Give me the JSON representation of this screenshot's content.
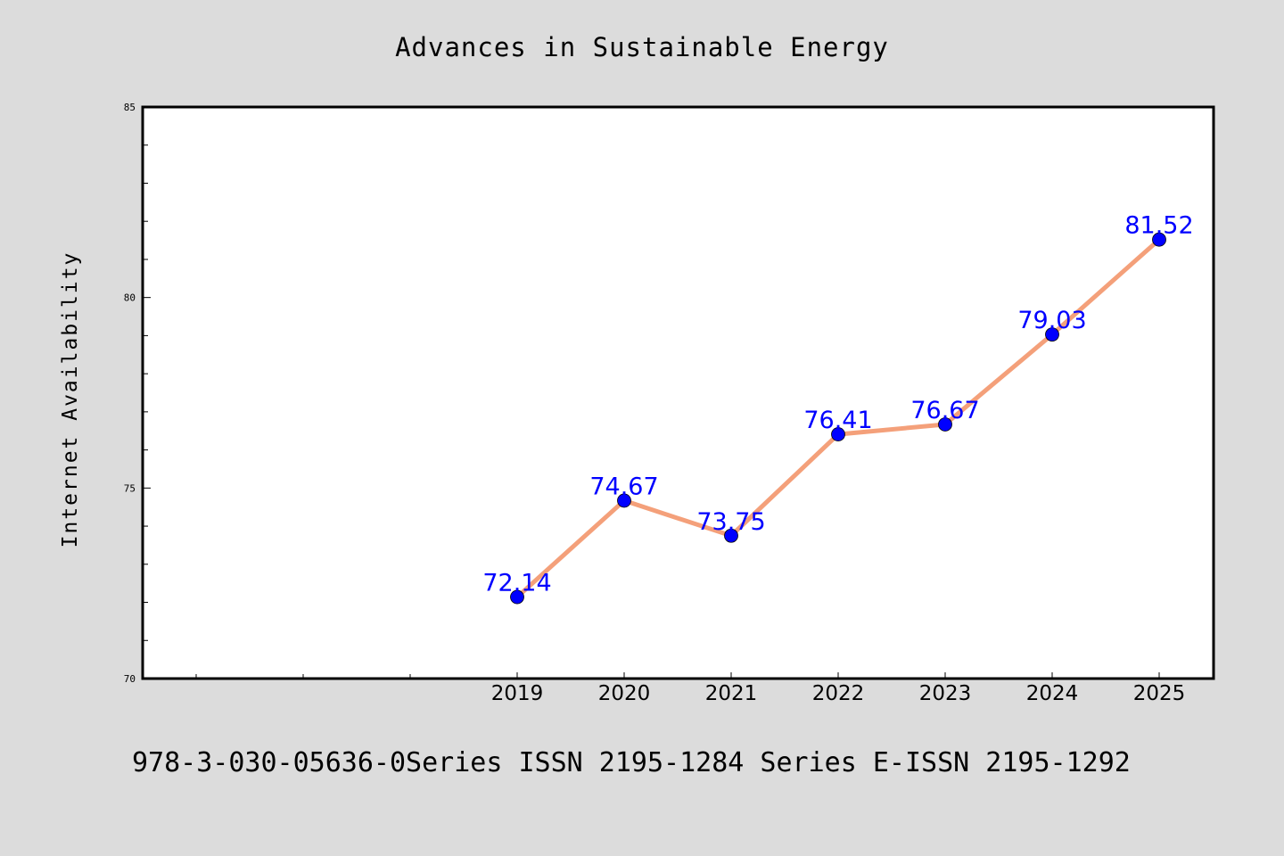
{
  "chart_data": {
    "type": "line",
    "title": "Advances in Sustainable Energy",
    "xlabel": "",
    "ylabel": "Internet Availability",
    "x": [
      "2019",
      "2020",
      "2021",
      "2022",
      "2023",
      "2024",
      "2025"
    ],
    "series": [
      {
        "values": [
          72.14,
          74.67,
          73.75,
          76.41,
          76.67,
          79.03,
          81.52
        ]
      }
    ],
    "data_labels": [
      "72.14",
      "74.67",
      "73.75",
      "76.41",
      "76.67",
      "79.03",
      "81.52"
    ],
    "ylim": [
      70,
      85
    ],
    "y_ticks": [
      "70",
      "75",
      "80",
      "85"
    ],
    "y_minor_step": 1,
    "x_extra_leading_ticks": 3,
    "grid": false,
    "line_color": "#f4a07a",
    "marker_color": "#0000ff",
    "label_color": "#0000ff",
    "background_color": "#dcdcdc",
    "plot_background_color": "#ffffff"
  },
  "footer": {
    "text": "978-3-030-05636-0Series ISSN 2195-1284 Series E-ISSN 2195-1292"
  }
}
